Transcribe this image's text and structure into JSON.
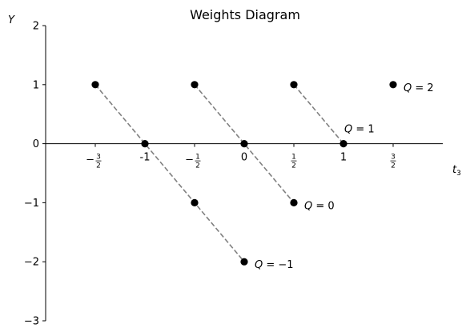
{
  "chart_data": {
    "type": "scatter",
    "title": "Weights Diagram",
    "xlabel": "t3",
    "ylabel": "Y",
    "xlim": [
      -2.0,
      2.0
    ],
    "ylim": [
      -3,
      2
    ],
    "grid": false,
    "x_ticks": [
      {
        "value": -1.5,
        "label": "-3/2",
        "frac": true,
        "sign": "−",
        "num": "3",
        "den": "2"
      },
      {
        "value": -1.0,
        "label": "-1",
        "frac": false
      },
      {
        "value": -0.5,
        "label": "-1/2",
        "frac": true,
        "sign": "−",
        "num": "1",
        "den": "2"
      },
      {
        "value": 0.0,
        "label": "0",
        "frac": false
      },
      {
        "value": 0.5,
        "label": "1/2",
        "frac": true,
        "sign": "",
        "num": "1",
        "den": "2"
      },
      {
        "value": 1.0,
        "label": "1",
        "frac": false
      },
      {
        "value": 1.5,
        "label": "3/2",
        "frac": true,
        "sign": "",
        "num": "3",
        "den": "2"
      }
    ],
    "y_ticks": [
      {
        "value": 2,
        "label": "2"
      },
      {
        "value": 1,
        "label": "1"
      },
      {
        "value": 0,
        "label": "0"
      },
      {
        "value": -1,
        "label": "−1"
      },
      {
        "value": -2,
        "label": "−2"
      },
      {
        "value": -3,
        "label": "−3"
      }
    ],
    "points": [
      {
        "x": -1.5,
        "y": 1
      },
      {
        "x": -1.0,
        "y": 0
      },
      {
        "x": -0.5,
        "y": -1
      },
      {
        "x": 0.0,
        "y": -2
      },
      {
        "x": -0.5,
        "y": 1
      },
      {
        "x": 0.0,
        "y": 0
      },
      {
        "x": 0.5,
        "y": -1
      },
      {
        "x": 0.5,
        "y": 1
      },
      {
        "x": 1.0,
        "y": 0
      },
      {
        "x": 1.5,
        "y": 1
      }
    ],
    "lines": [
      {
        "x": [
          -1.5,
          0.0
        ],
        "y": [
          1,
          -2
        ]
      },
      {
        "x": [
          -0.5,
          0.5
        ],
        "y": [
          1,
          -1
        ]
      },
      {
        "x": [
          0.5,
          1.0
        ],
        "y": [
          1,
          0
        ]
      }
    ],
    "annotations": [
      {
        "text": "Q = 2",
        "x": 1.5,
        "y": 1,
        "anchor": "right"
      },
      {
        "text": "Q = 1",
        "x": 1.0,
        "y": 0,
        "anchor": "above"
      },
      {
        "text": "Q = 0",
        "x": 0.5,
        "y": -1,
        "anchor": "right"
      },
      {
        "text": "Q = −1",
        "x": 0.0,
        "y": -2,
        "anchor": "right"
      }
    ],
    "colors": {
      "points": "#000000",
      "lines": "#808080",
      "axes": "#000000"
    }
  }
}
